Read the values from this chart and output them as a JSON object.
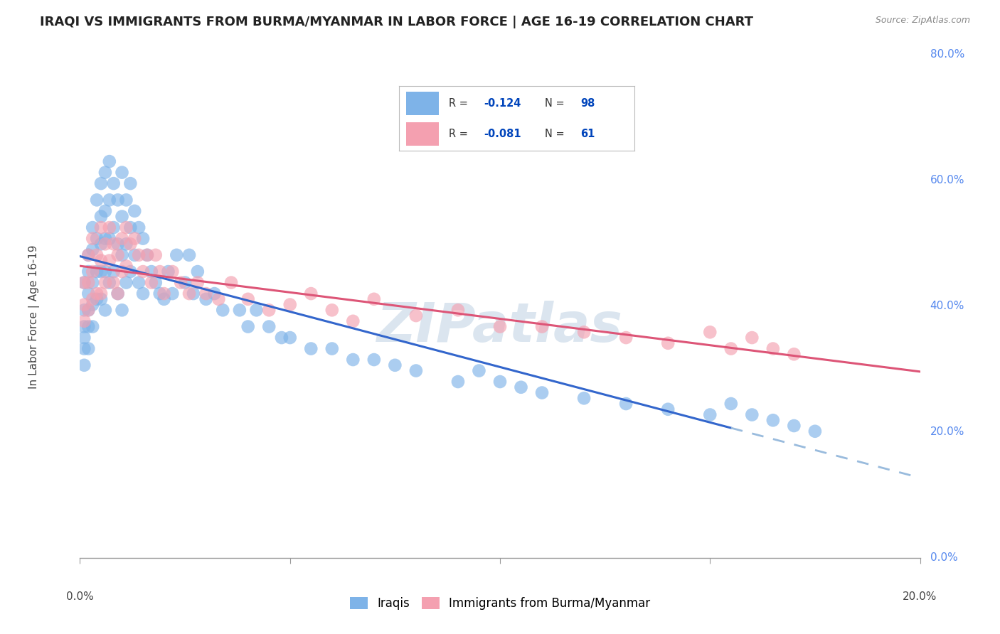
{
  "title": "IRAQI VS IMMIGRANTS FROM BURMA/MYANMAR IN LABOR FORCE | AGE 16-19 CORRELATION CHART",
  "source": "Source: ZipAtlas.com",
  "ylabel": "In Labor Force | Age 16-19",
  "xlim": [
    0.0,
    0.2
  ],
  "ylim": [
    0.0,
    0.875
  ],
  "ytick_vals": [
    0.0,
    0.2,
    0.4,
    0.6,
    0.8
  ],
  "ytick_labels": [
    "0.0%",
    "20.0%",
    "40.0%",
    "60.0%",
    "80.0%"
  ],
  "iraqi_color": "#7EB3E8",
  "burma_color": "#F4A0B0",
  "iraqi_line_color": "#3366CC",
  "burma_line_color": "#DD5577",
  "iraqi_dash_color": "#99BBDD",
  "iraqi_R": -0.124,
  "iraqi_N": 98,
  "burma_R": -0.081,
  "burma_N": 61,
  "legend_label_iraqi": "Iraqis",
  "legend_label_burma": "Immigrants from Burma/Myanmar",
  "watermark": "ZIPatlas",
  "iraqi_scatter_x": [
    0.001,
    0.001,
    0.001,
    0.001,
    0.001,
    0.001,
    0.002,
    0.002,
    0.002,
    0.002,
    0.002,
    0.002,
    0.003,
    0.003,
    0.003,
    0.003,
    0.003,
    0.004,
    0.004,
    0.004,
    0.004,
    0.005,
    0.005,
    0.005,
    0.005,
    0.005,
    0.006,
    0.006,
    0.006,
    0.006,
    0.006,
    0.007,
    0.007,
    0.007,
    0.007,
    0.008,
    0.008,
    0.008,
    0.009,
    0.009,
    0.009,
    0.01,
    0.01,
    0.01,
    0.01,
    0.011,
    0.011,
    0.011,
    0.012,
    0.012,
    0.012,
    0.013,
    0.013,
    0.014,
    0.014,
    0.015,
    0.015,
    0.016,
    0.017,
    0.018,
    0.019,
    0.02,
    0.021,
    0.022,
    0.023,
    0.025,
    0.026,
    0.027,
    0.028,
    0.03,
    0.032,
    0.034,
    0.038,
    0.04,
    0.042,
    0.045,
    0.048,
    0.05,
    0.055,
    0.06,
    0.065,
    0.07,
    0.075,
    0.08,
    0.09,
    0.095,
    0.1,
    0.105,
    0.11,
    0.12,
    0.13,
    0.14,
    0.15,
    0.155,
    0.16,
    0.165,
    0.17,
    0.175
  ],
  "iraqi_scatter_y": [
    0.5,
    0.45,
    0.42,
    0.4,
    0.38,
    0.35,
    0.55,
    0.52,
    0.48,
    0.45,
    0.42,
    0.38,
    0.6,
    0.56,
    0.5,
    0.46,
    0.42,
    0.65,
    0.58,
    0.52,
    0.47,
    0.68,
    0.62,
    0.57,
    0.52,
    0.47,
    0.7,
    0.63,
    0.58,
    0.52,
    0.45,
    0.72,
    0.65,
    0.58,
    0.5,
    0.68,
    0.6,
    0.52,
    0.65,
    0.57,
    0.48,
    0.7,
    0.62,
    0.55,
    0.45,
    0.65,
    0.57,
    0.5,
    0.68,
    0.6,
    0.52,
    0.63,
    0.55,
    0.6,
    0.5,
    0.58,
    0.48,
    0.55,
    0.52,
    0.5,
    0.48,
    0.47,
    0.52,
    0.48,
    0.55,
    0.5,
    0.55,
    0.48,
    0.52,
    0.47,
    0.48,
    0.45,
    0.45,
    0.42,
    0.45,
    0.42,
    0.4,
    0.4,
    0.38,
    0.38,
    0.36,
    0.36,
    0.35,
    0.34,
    0.32,
    0.34,
    0.32,
    0.31,
    0.3,
    0.29,
    0.28,
    0.27,
    0.26,
    0.28,
    0.26,
    0.25,
    0.24,
    0.23
  ],
  "burma_scatter_x": [
    0.001,
    0.001,
    0.001,
    0.002,
    0.002,
    0.002,
    0.003,
    0.003,
    0.003,
    0.004,
    0.004,
    0.005,
    0.005,
    0.005,
    0.006,
    0.006,
    0.007,
    0.007,
    0.008,
    0.008,
    0.009,
    0.009,
    0.01,
    0.01,
    0.011,
    0.011,
    0.012,
    0.013,
    0.014,
    0.015,
    0.016,
    0.017,
    0.018,
    0.019,
    0.02,
    0.022,
    0.024,
    0.026,
    0.028,
    0.03,
    0.033,
    0.036,
    0.04,
    0.045,
    0.05,
    0.055,
    0.06,
    0.065,
    0.07,
    0.08,
    0.09,
    0.1,
    0.11,
    0.12,
    0.13,
    0.14,
    0.15,
    0.155,
    0.16,
    0.165,
    0.17
  ],
  "burma_scatter_y": [
    0.5,
    0.46,
    0.43,
    0.55,
    0.5,
    0.45,
    0.58,
    0.52,
    0.47,
    0.55,
    0.48,
    0.6,
    0.54,
    0.48,
    0.57,
    0.5,
    0.6,
    0.54,
    0.57,
    0.5,
    0.55,
    0.48,
    0.58,
    0.52,
    0.6,
    0.53,
    0.57,
    0.58,
    0.55,
    0.52,
    0.55,
    0.5,
    0.55,
    0.52,
    0.48,
    0.52,
    0.5,
    0.48,
    0.5,
    0.48,
    0.47,
    0.5,
    0.47,
    0.45,
    0.46,
    0.48,
    0.45,
    0.43,
    0.47,
    0.44,
    0.45,
    0.42,
    0.42,
    0.41,
    0.4,
    0.39,
    0.41,
    0.38,
    0.4,
    0.38,
    0.37
  ],
  "background_color": "#ffffff",
  "grid_color": "#cccccc",
  "title_fontsize": 13,
  "tick_fontsize": 11,
  "legend_R_color": "#0044BB",
  "legend_N_color": "#0044BB",
  "iraqi_line_x_solid_end": 0.155,
  "iraqi_line_x_dash_start": 0.155
}
